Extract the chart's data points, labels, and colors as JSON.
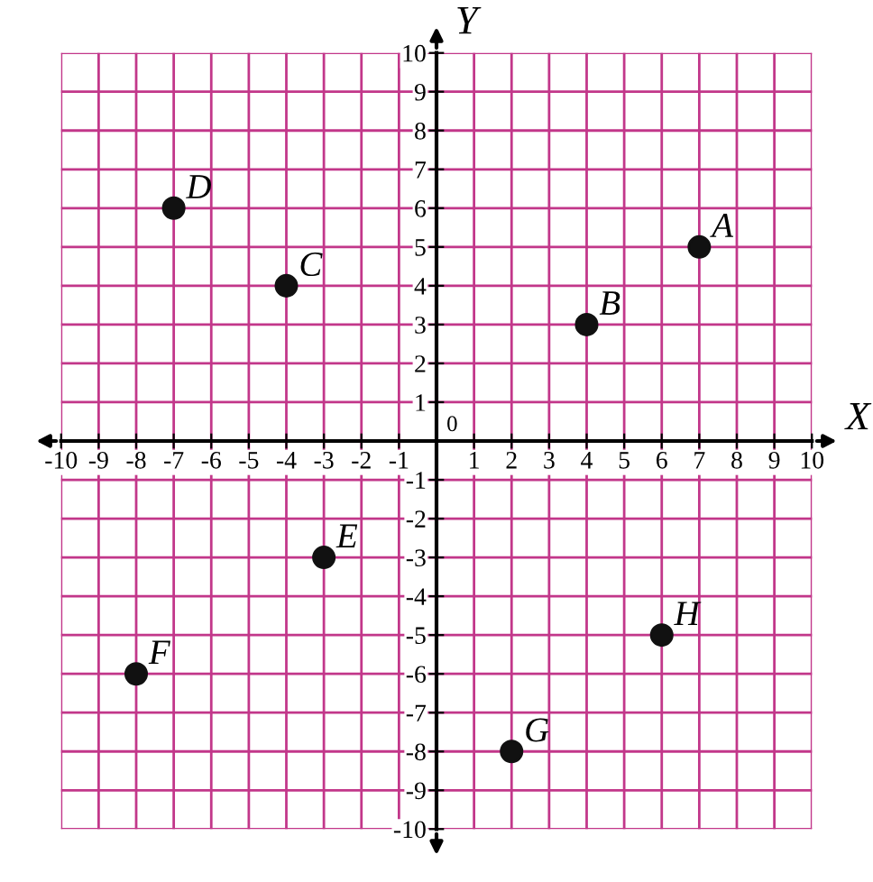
{
  "chart_data": {
    "type": "scatter",
    "xlabel": "X",
    "ylabel": "Y",
    "x": [
      7,
      4,
      -4,
      -7,
      -3,
      -8,
      2,
      6
    ],
    "series": [
      {
        "color": "#111111",
        "values": [
          5,
          3,
          4,
          6,
          -3,
          -6,
          -8,
          -5
        ]
      }
    ],
    "marker": "circle",
    "annotations": [
      {
        "text": "A",
        "x": 7,
        "y": 5
      },
      {
        "text": "B",
        "x": 4,
        "y": 3
      },
      {
        "text": "C",
        "x": -4,
        "y": 4
      },
      {
        "text": "D",
        "x": -7,
        "y": 6
      },
      {
        "text": "E",
        "x": -3,
        "y": -3
      },
      {
        "text": "F",
        "x": -8,
        "y": -6
      },
      {
        "text": "G",
        "x": 2,
        "y": -8
      },
      {
        "text": "H",
        "x": 6,
        "y": -5
      },
      "0"
    ],
    "xlim": [
      -10,
      10
    ],
    "ylim": [
      -10,
      10
    ],
    "xticks": [
      -10,
      -9,
      -8,
      -7,
      -6,
      -5,
      -4,
      -3,
      -2,
      -1,
      1,
      2,
      3,
      4,
      5,
      6,
      7,
      8,
      9,
      10
    ],
    "yticks": [
      -10,
      -9,
      -8,
      -7,
      -6,
      -5,
      -4,
      -3,
      -2,
      -1,
      1,
      2,
      3,
      4,
      5,
      6,
      7,
      8,
      9,
      10
    ],
    "grid": true
  }
}
